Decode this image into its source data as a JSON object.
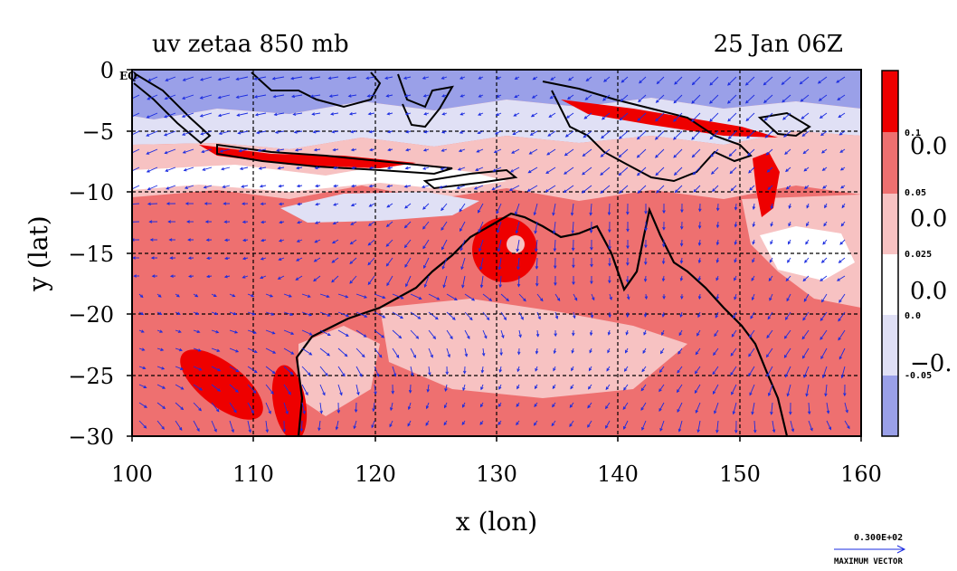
{
  "plot": {
    "title_left": "uv zetaa 850 mb",
    "title_right": "25 Jan 06Z",
    "xlabel": "x (lon)",
    "ylabel": "y (lat)",
    "x_ticks": [
      "100",
      "110",
      "120",
      "130",
      "140",
      "150",
      "160"
    ],
    "y_ticks": [
      "0",
      "−5",
      "−10",
      "−15",
      "−20",
      "−25",
      "−30"
    ],
    "eq_label": "EQ",
    "x_range": [
      100,
      160
    ],
    "y_range": [
      -30,
      0
    ]
  },
  "colorbar": {
    "small_labels": [
      "0.1",
      "0.05",
      "0.025",
      "0.0",
      "-0.05"
    ],
    "large_labels": [
      "0.0",
      "0.0",
      "0.0",
      "−0."
    ],
    "colors": [
      "#ee0000",
      "#ee7070",
      "#f7c2c2",
      "#ffffff",
      "#e0e0f5",
      "#9aa0e8"
    ]
  },
  "vector_key": {
    "value": "0.300E+02",
    "caption": "MAXIMUM VECTOR"
  },
  "colors": {
    "strong_pos": "#ee0000",
    "mid_pos": "#ee7070",
    "light_pos": "#f7c2c2",
    "light_neg": "#e0e0f5",
    "neg": "#9aa0e8",
    "vectors": "#1a2be0",
    "coast": "#000000"
  }
}
